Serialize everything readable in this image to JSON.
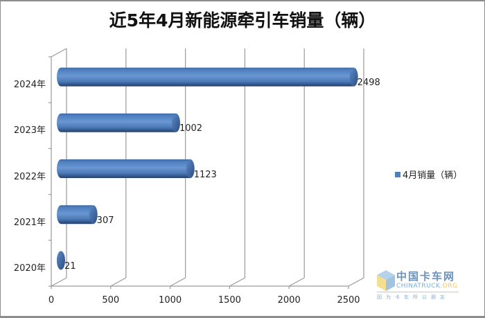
{
  "title": "近5年4月新能源牵引车销量（辆）",
  "legend": {
    "label": "4月销量（辆）",
    "color": "#4f81bd"
  },
  "categories": [
    "2024年",
    "2023年",
    "2022年",
    "2021年",
    "2020年"
  ],
  "value_labels": [
    "2498",
    "1002",
    "1123",
    "307",
    "21"
  ],
  "x_ticks": [
    "0",
    "500",
    "1000",
    "1500",
    "2000",
    "2500"
  ],
  "watermark": {
    "cn": "中国卡车网",
    "en": "CHINATRUCK",
    "org": ".ORG",
    "slogan": "因为卡车所以朋友"
  },
  "chart_data": {
    "type": "bar",
    "orientation": "horizontal",
    "style": "3d-cylinder",
    "title": "近5年4月新能源牵引车销量（辆）",
    "categories": [
      "2024年",
      "2023年",
      "2022年",
      "2021年",
      "2020年"
    ],
    "series": [
      {
        "name": "4月销量（辆）",
        "values": [
          2498,
          1002,
          1123,
          307,
          21
        ],
        "color": "#4f81bd"
      }
    ],
    "xlabel": "",
    "ylabel": "",
    "xlim": [
      0,
      2500
    ],
    "x_ticks": [
      0,
      500,
      1000,
      1500,
      2000,
      2500
    ],
    "grid": true,
    "legend_position": "right",
    "data_labels": true
  }
}
